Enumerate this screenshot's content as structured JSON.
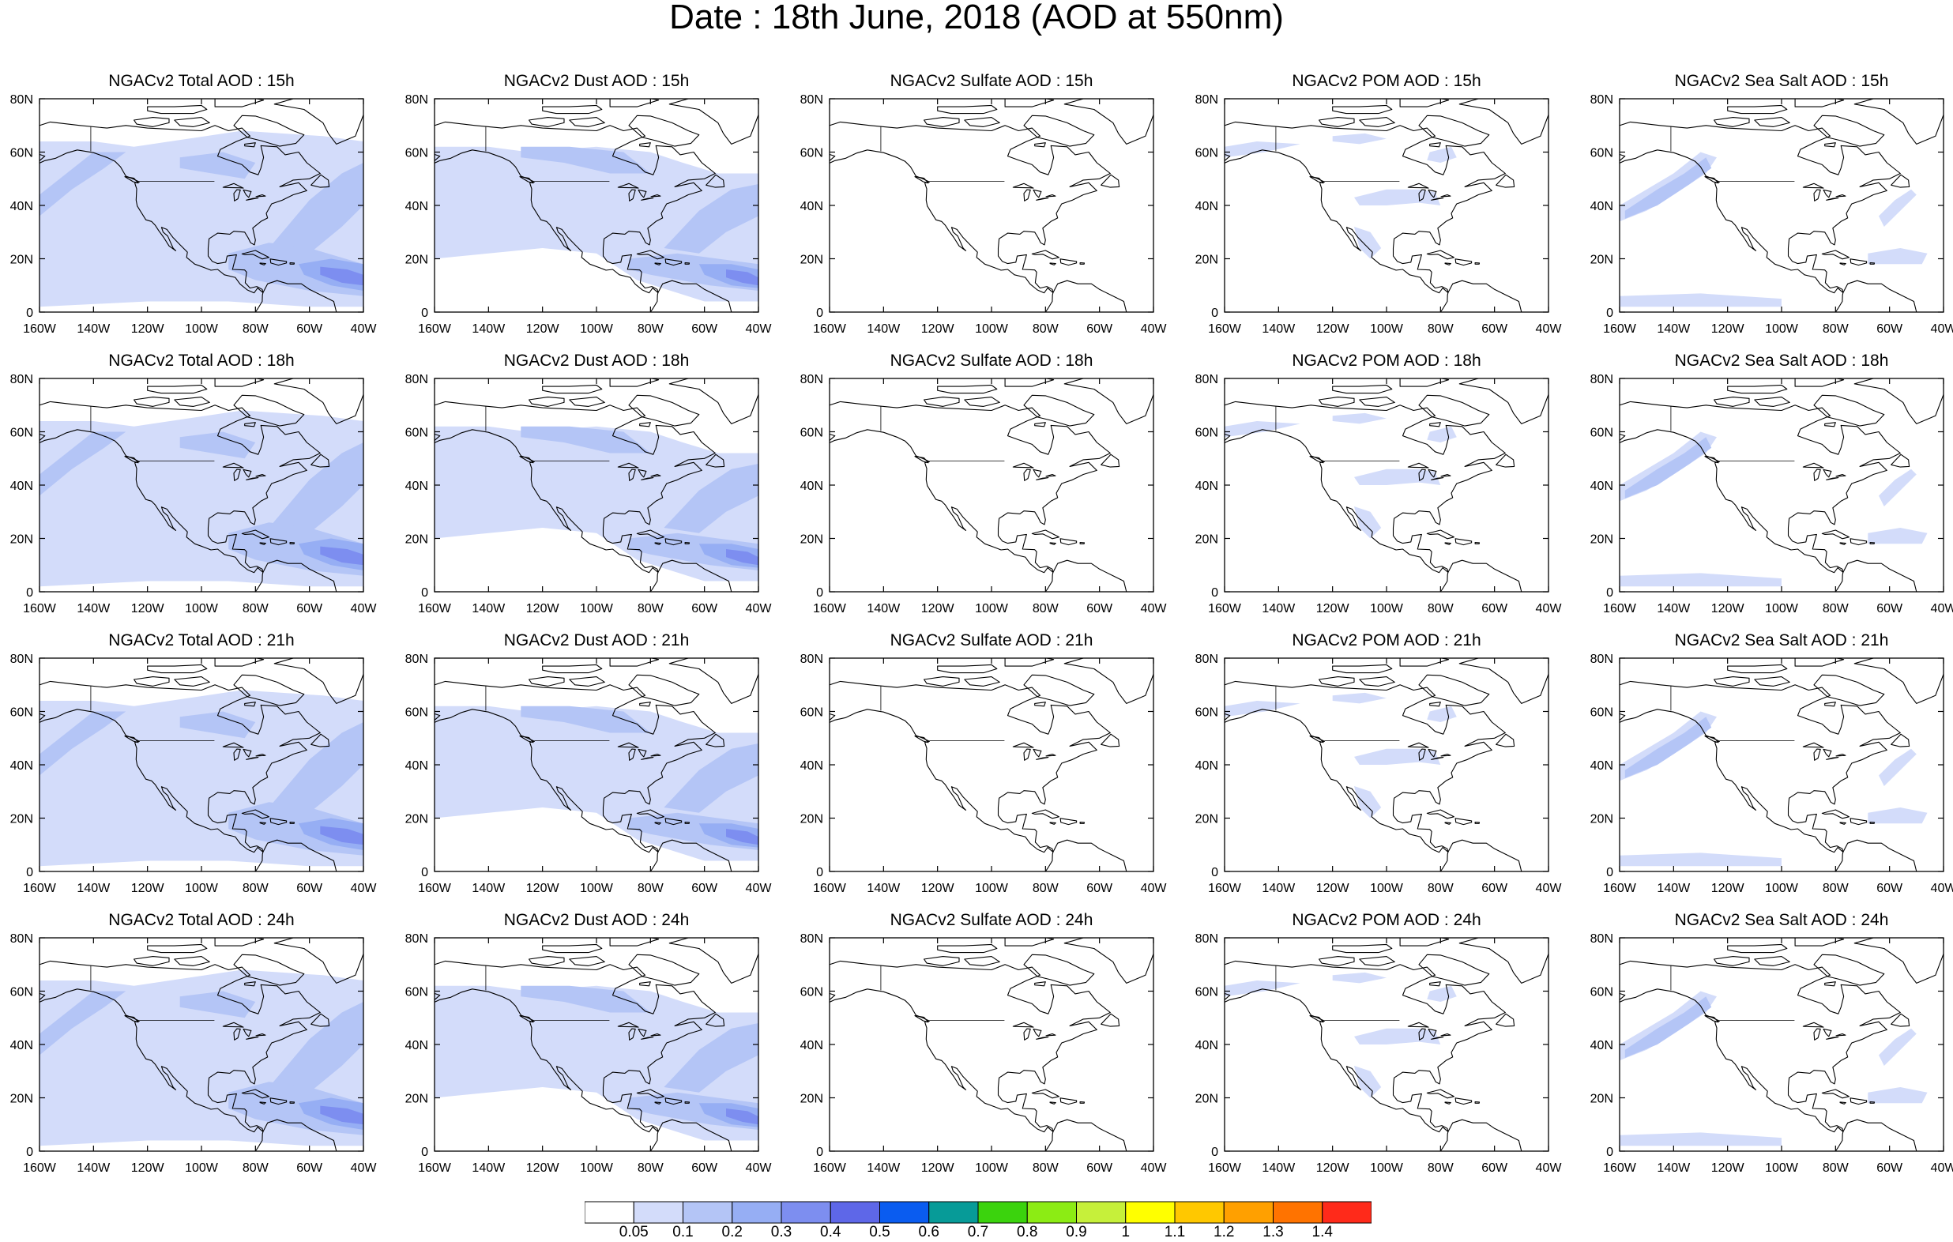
{
  "title": "Date : 18th June, 2018 (AOD at 550nm)",
  "axes": {
    "lon_labels": [
      "160W",
      "140W",
      "120W",
      "100W",
      "80W",
      "60W",
      "40W"
    ],
    "lat_labels": [
      "80N",
      "60N",
      "40N",
      "20N",
      "0"
    ]
  },
  "panels": [
    {
      "title": "NGACv2 Total AOD : 15h",
      "species": "total"
    },
    {
      "title": "NGACv2 Dust AOD : 15h",
      "species": "dust"
    },
    {
      "title": "NGACv2 Sulfate AOD : 15h",
      "species": "sulfate"
    },
    {
      "title": "NGACv2 POM AOD : 15h",
      "species": "pom"
    },
    {
      "title": "NGACv2 Sea Salt AOD : 15h",
      "species": "seasalt"
    },
    {
      "title": "NGACv2 Total AOD : 18h",
      "species": "total"
    },
    {
      "title": "NGACv2 Dust AOD : 18h",
      "species": "dust"
    },
    {
      "title": "NGACv2 Sulfate AOD : 18h",
      "species": "sulfate"
    },
    {
      "title": "NGACv2 POM AOD : 18h",
      "species": "pom"
    },
    {
      "title": "NGACv2 Sea Salt AOD : 18h",
      "species": "seasalt"
    },
    {
      "title": "NGACv2 Total AOD : 21h",
      "species": "total"
    },
    {
      "title": "NGACv2 Dust AOD : 21h",
      "species": "dust"
    },
    {
      "title": "NGACv2 Sulfate AOD : 21h",
      "species": "sulfate"
    },
    {
      "title": "NGACv2 POM AOD : 21h",
      "species": "pom"
    },
    {
      "title": "NGACv2 Sea Salt AOD : 21h",
      "species": "seasalt"
    },
    {
      "title": "NGACv2 Total AOD : 24h",
      "species": "total"
    },
    {
      "title": "NGACv2 Dust AOD : 24h",
      "species": "dust"
    },
    {
      "title": "NGACv2 Sulfate AOD : 24h",
      "species": "sulfate"
    },
    {
      "title": "NGACv2 POM AOD : 24h",
      "species": "pom"
    },
    {
      "title": "NGACv2 Sea Salt  AOD : 24h",
      "species": "seasalt"
    }
  ],
  "colorbar": {
    "colors": [
      "#ffffff",
      "#d3dcfa",
      "#b4c5f6",
      "#96aef4",
      "#7d8ef0",
      "#5e67e8",
      "#0a5cf0",
      "#079b98",
      "#3bd30d",
      "#8cec14",
      "#c6f03a",
      "#ffff00",
      "#ffc800",
      "#ffa000",
      "#ff7300",
      "#ff2a1a"
    ],
    "labels": [
      "0.05",
      "0.1",
      "0.2",
      "0.3",
      "0.4",
      "0.5",
      "0.6",
      "0.7",
      "0.8",
      "0.9",
      "1",
      "1.1",
      "1.2",
      "1.3",
      "1.4"
    ]
  }
}
